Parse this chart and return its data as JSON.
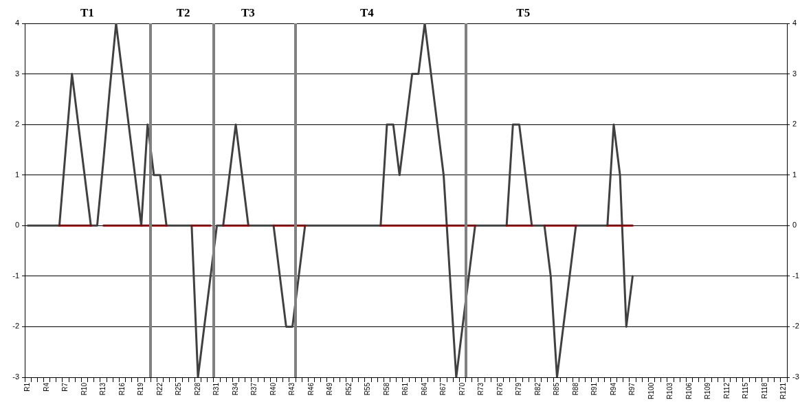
{
  "chart_data": {
    "type": "line",
    "categories": [
      "R1",
      null,
      null,
      "R4",
      null,
      null,
      "R7",
      null,
      null,
      "R10",
      null,
      null,
      "R13",
      null,
      null,
      "R16",
      null,
      null,
      "R19",
      null,
      null,
      "R22",
      null,
      null,
      "R25",
      null,
      null,
      "R28",
      null,
      null,
      "R31",
      null,
      null,
      "R34",
      null,
      null,
      "R37",
      null,
      null,
      "R40",
      null,
      null,
      "R43",
      null,
      null,
      "R46",
      null,
      null,
      "R49",
      null,
      null,
      "R52",
      null,
      null,
      "R55",
      null,
      null,
      "R58",
      null,
      null,
      "R61",
      null,
      null,
      "R64",
      null,
      null,
      "R67",
      null,
      null,
      "R70",
      null,
      null,
      "R73",
      null,
      null,
      "R76",
      null,
      null,
      "R79",
      null,
      null,
      "R82",
      null,
      null,
      "R85",
      null,
      null,
      "R88",
      null,
      null,
      "R91",
      null,
      null,
      "R94",
      null,
      null,
      "R97",
      null,
      null,
      "R100",
      null,
      null,
      "R103",
      null,
      null,
      "R106",
      null,
      null,
      "R109",
      null,
      null,
      "R112",
      null,
      null,
      "R115",
      null,
      null,
      "R118",
      null,
      null,
      "R121"
    ],
    "series": [
      {
        "color": "#404040",
        "values": [
          0,
          0,
          0,
          0,
          0,
          0,
          1.5,
          3,
          2,
          1,
          0,
          0,
          1.3,
          2.7,
          4,
          3,
          2,
          1,
          0,
          2,
          1,
          1,
          0,
          0,
          0,
          0,
          0,
          -3,
          -2,
          -1,
          0,
          0,
          1,
          2,
          1,
          0,
          0,
          0,
          0,
          0,
          -1,
          -2,
          -2,
          -1,
          0,
          0,
          0,
          0,
          0,
          0,
          0,
          0,
          0,
          0,
          0,
          0,
          0,
          2,
          2,
          1,
          2,
          3,
          3,
          4,
          3,
          2,
          1,
          -1,
          -3,
          -2,
          -1,
          0,
          0,
          0,
          0,
          0,
          0,
          2,
          2,
          1,
          0,
          0,
          0,
          -1,
          -3,
          -2,
          -1,
          0,
          0,
          0,
          0,
          0,
          0,
          2,
          1,
          -2,
          -1,
          null,
          null,
          null,
          null,
          null,
          null,
          null,
          null,
          null,
          null,
          null,
          null,
          null,
          null,
          null,
          null,
          null,
          null,
          null,
          null,
          null,
          null,
          null,
          null
        ]
      },
      {
        "color": "#990000",
        "values": [
          null,
          null,
          null,
          null,
          null,
          0,
          0,
          0,
          0,
          0,
          0,
          null,
          0,
          0,
          0,
          0,
          0,
          0,
          0,
          0,
          0,
          0,
          0,
          null,
          null,
          null,
          0,
          0,
          0,
          0,
          null,
          0,
          0,
          0,
          0,
          0,
          null,
          null,
          null,
          0,
          0,
          0,
          0,
          0,
          0,
          null,
          null,
          null,
          null,
          null,
          null,
          null,
          null,
          null,
          null,
          null,
          0,
          0,
          0,
          0,
          0,
          0,
          0,
          0,
          0,
          0,
          0,
          0,
          0,
          0,
          0,
          0,
          null,
          null,
          null,
          null,
          0,
          0,
          0,
          0,
          0,
          null,
          0,
          0,
          0,
          0,
          0,
          0,
          null,
          null,
          null,
          null,
          0,
          0,
          0,
          0,
          0,
          null,
          null,
          null,
          null,
          null,
          null,
          null,
          null,
          null,
          null,
          null,
          null,
          null,
          null,
          null,
          null,
          null,
          null,
          null,
          null,
          null,
          null,
          null,
          null
        ]
      }
    ],
    "ylim": [
      -3,
      4
    ],
    "yticks": [
      -3,
      -2,
      -1,
      0,
      1,
      2,
      3,
      4
    ],
    "y2lim": [
      -3,
      4
    ],
    "y2ticks": [
      -3,
      -2,
      -1,
      0,
      1,
      2,
      3,
      4
    ],
    "grid": "y",
    "annotations": [
      "T1",
      "T2",
      "T3",
      "T4",
      "T5"
    ]
  }
}
